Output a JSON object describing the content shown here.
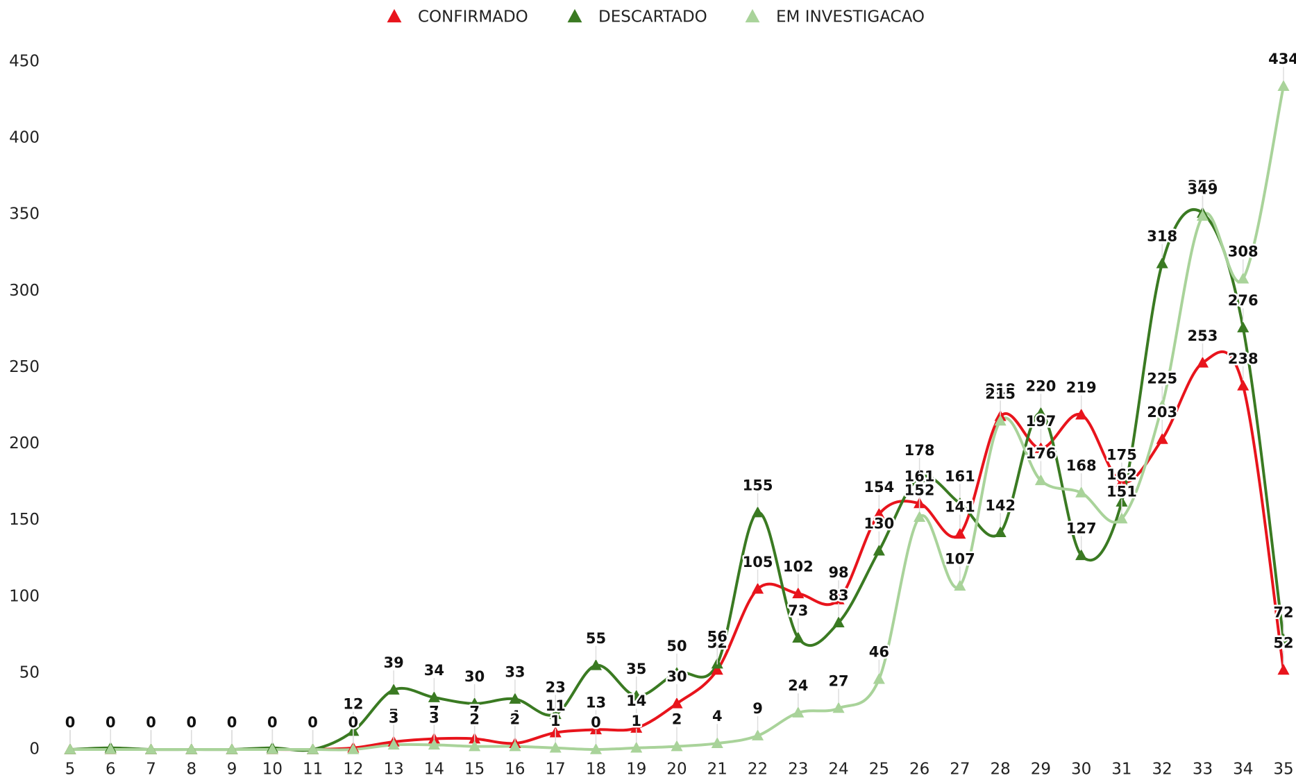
{
  "chart_data": {
    "type": "line",
    "categories": [
      "5",
      "6",
      "7",
      "8",
      "9",
      "10",
      "11",
      "12",
      "13",
      "14",
      "15",
      "16",
      "17",
      "18",
      "19",
      "20",
      "21",
      "22",
      "23",
      "24",
      "25",
      "26",
      "27",
      "28",
      "29",
      "30",
      "31",
      "32",
      "33",
      "34",
      "35"
    ],
    "series": [
      {
        "name": "CONFIRMADO",
        "color": "#e8141c",
        "values": [
          0,
          0,
          0,
          0,
          0,
          0,
          0,
          1,
          5,
          7,
          7,
          4,
          11,
          13,
          14,
          30,
          52,
          105,
          102,
          98,
          154,
          161,
          141,
          218,
          197,
          219,
          175,
          203,
          253,
          238,
          52
        ]
      },
      {
        "name": "DESCARTADO",
        "color": "#3a7a22",
        "values": [
          0,
          1,
          0,
          0,
          0,
          1,
          0,
          12,
          39,
          34,
          30,
          33,
          23,
          55,
          35,
          50,
          56,
          155,
          73,
          83,
          130,
          178,
          161,
          142,
          220,
          127,
          162,
          318,
          351,
          276,
          72
        ]
      },
      {
        "name": "EM INVESTIGACAO",
        "color": "#a9d39a",
        "values": [
          0,
          0,
          0,
          0,
          0,
          0,
          0,
          0,
          3,
          3,
          2,
          2,
          1,
          0,
          1,
          2,
          4,
          9,
          24,
          27,
          46,
          152,
          107,
          215,
          176,
          168,
          151,
          225,
          349,
          308,
          434
        ]
      }
    ],
    "ylim": [
      0,
      450
    ],
    "yticks": [
      0,
      50,
      100,
      150,
      200,
      250,
      300,
      350,
      400,
      450
    ],
    "legend": "top",
    "smooth": true
  }
}
